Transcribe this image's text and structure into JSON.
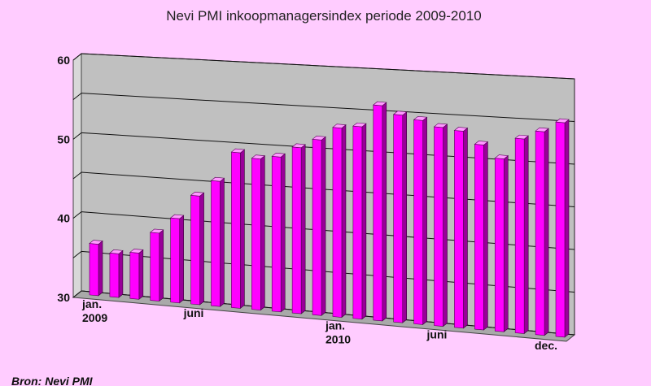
{
  "chart_data": {
    "type": "bar",
    "title": "Nevi PMI inkoopmanagersindex periode 2009-2010",
    "source": "Bron: Nevi PMI",
    "y_ticks": [
      30,
      40,
      50,
      60
    ],
    "ylim": [
      30,
      60
    ],
    "x_labels": [
      {
        "index": 0,
        "lines": [
          "jan.",
          "2009"
        ]
      },
      {
        "index": 5,
        "lines": [
          "juni"
        ]
      },
      {
        "index": 12,
        "lines": [
          "jan.",
          "2010"
        ]
      },
      {
        "index": 17,
        "lines": [
          "juni"
        ]
      },
      {
        "index": 23,
        "lines": [
          "dec."
        ]
      }
    ],
    "values": [
      36.5,
      35.5,
      35.8,
      38.5,
      40.5,
      43.5,
      45.5,
      49.2,
      48.6,
      49.0,
      50.3,
      51.4,
      53.0,
      53.3,
      56.0,
      55.0,
      54.5,
      53.8,
      53.5,
      52.0,
      50.5,
      53.0,
      54.0,
      55.2
    ],
    "colors": {
      "bar_front": "#ff00ff",
      "bar_side": "#990099",
      "bar_top": "#ff99ff",
      "back_wall": "#c0c0c0",
      "side_wall": "#d8d8d8",
      "floor": "#a9a9a9",
      "background": "#ffccff"
    },
    "grid": true
  }
}
